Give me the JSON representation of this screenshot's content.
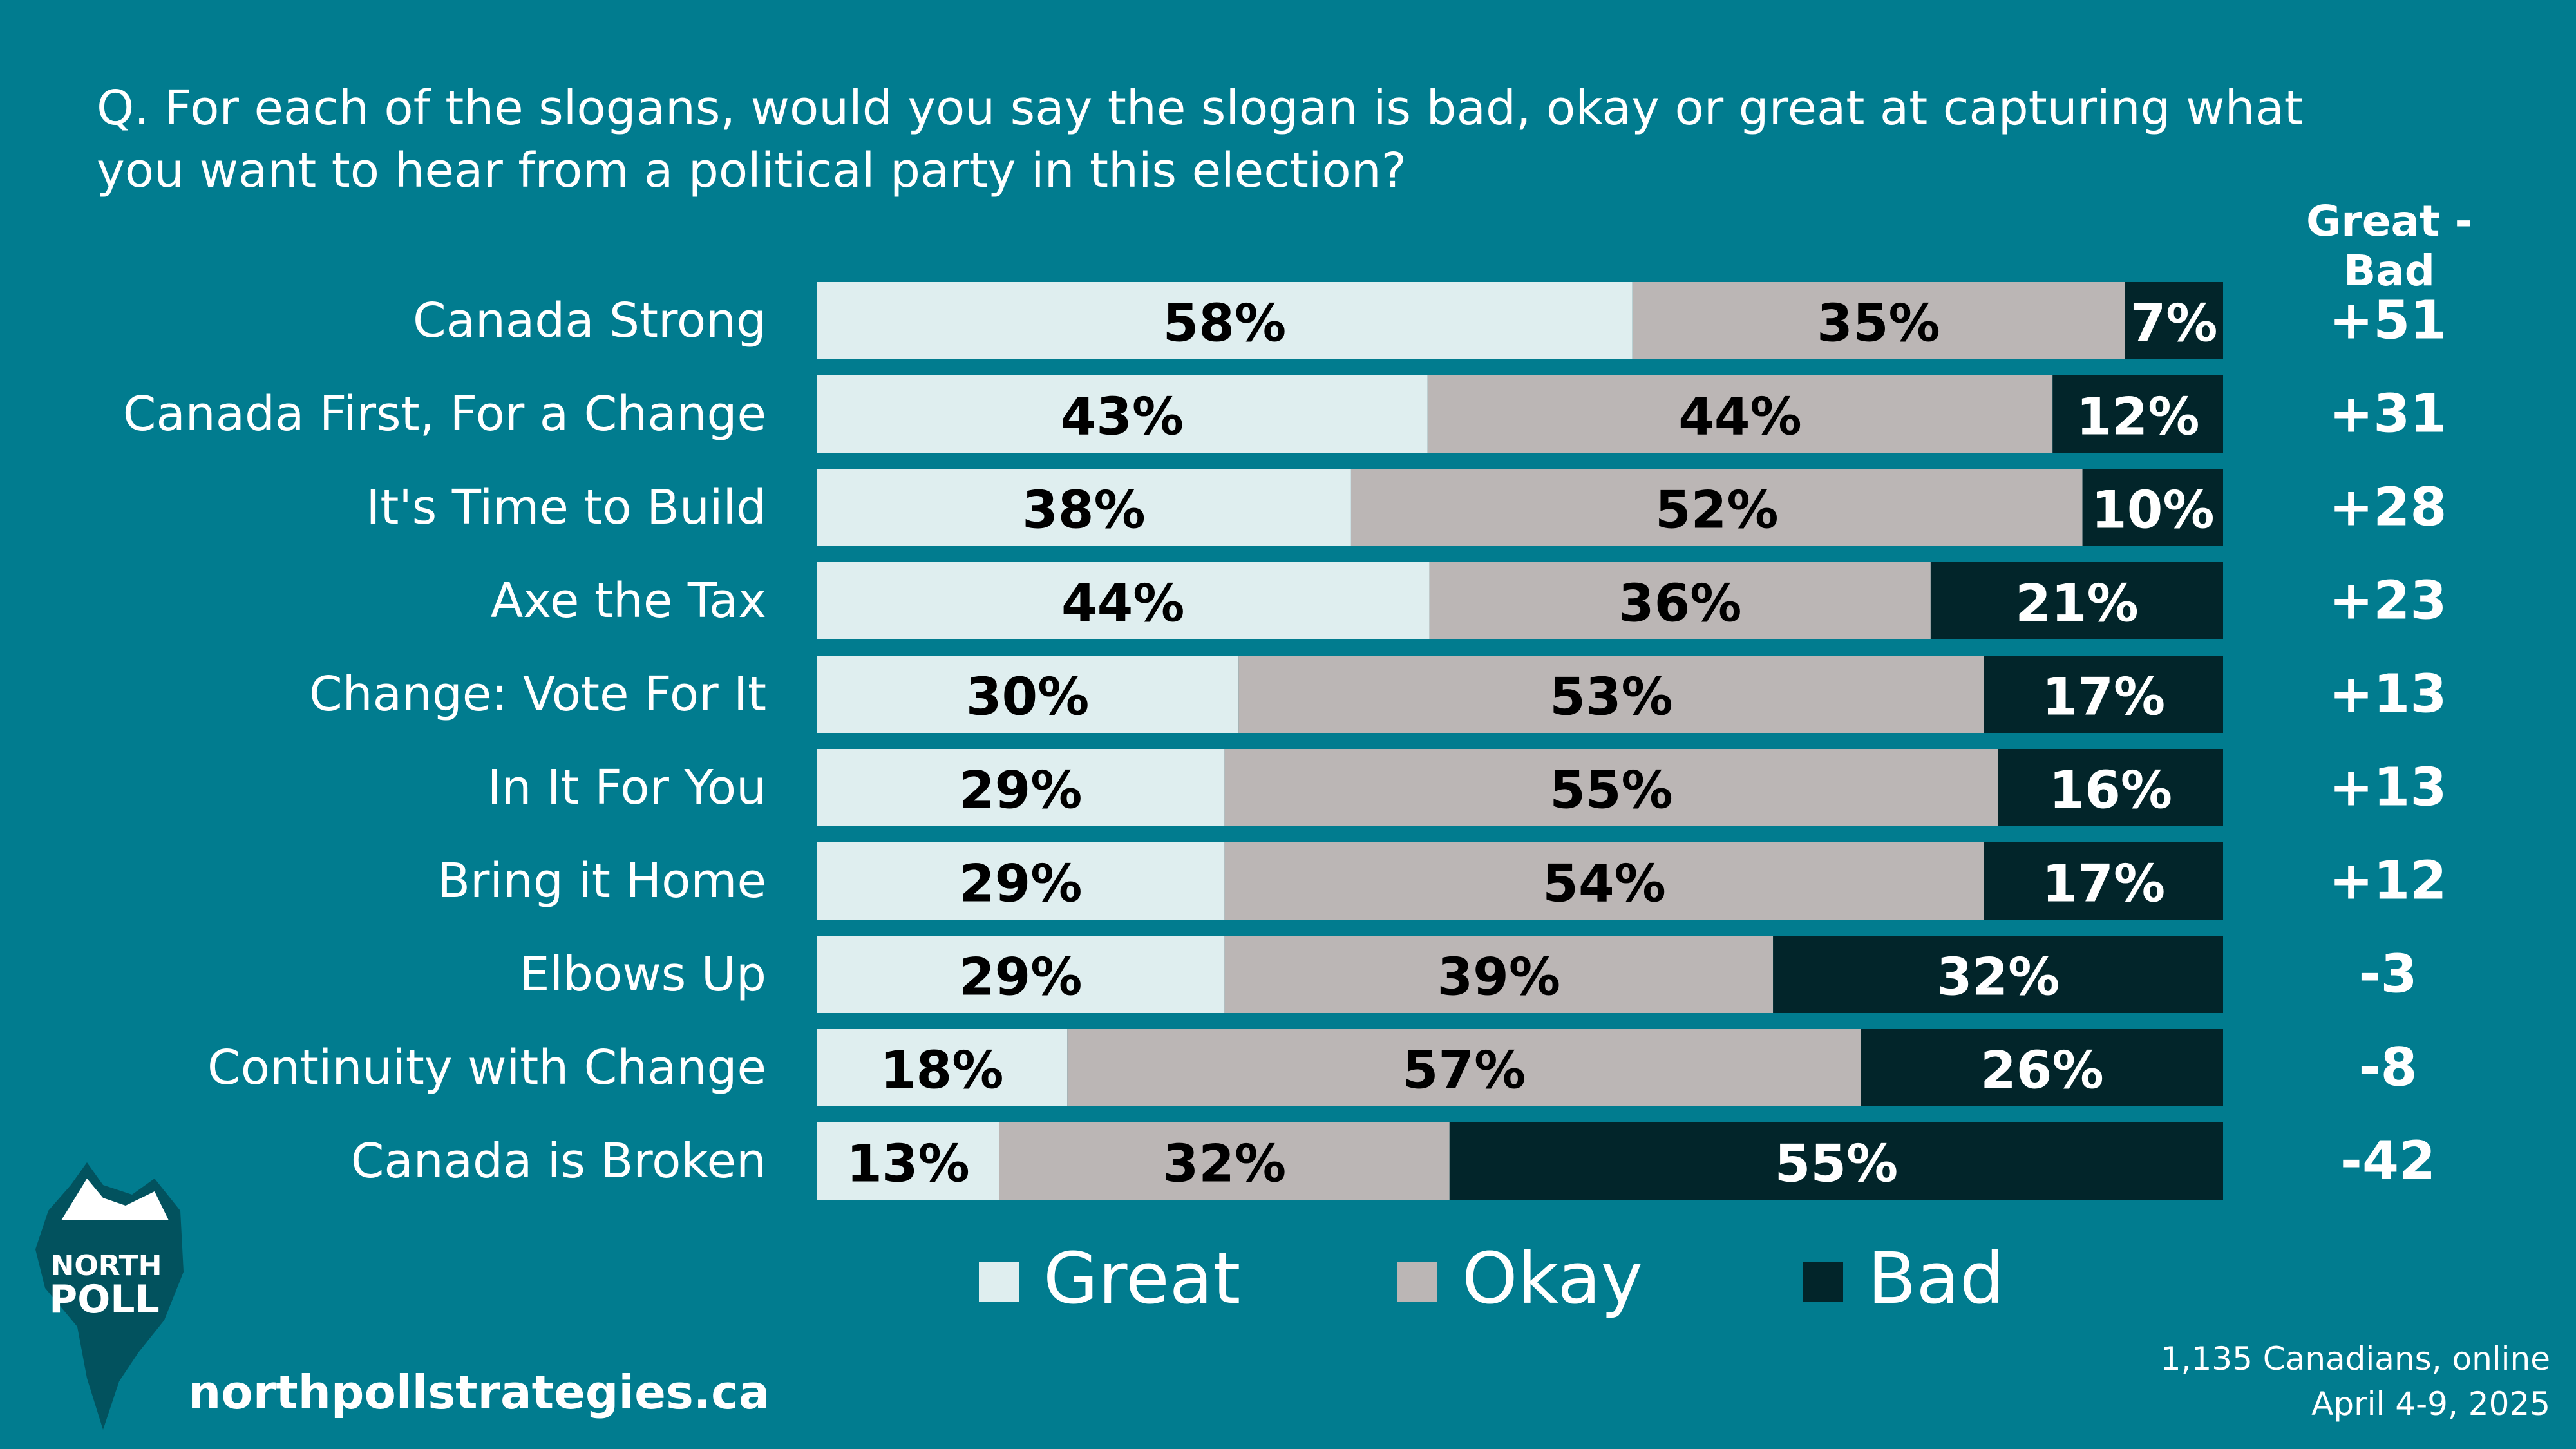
{
  "question": "Q. For each of the slogans, would you say the slogan is bad, okay or great at capturing what you want to hear from a political party in this election?",
  "diff_header": "Great - Bad",
  "colors": {
    "background": "#017c8f",
    "great": "#dfeeef",
    "okay": "#bbb6b5",
    "bad": "#02252a"
  },
  "chart_data": {
    "type": "bar",
    "orientation": "horizontal",
    "stacked": true,
    "categories": [
      "Canada Strong",
      "Canada First, For a Change",
      "It's Time to Build",
      "Axe the Tax",
      "Change: Vote For It",
      "In It For You",
      "Bring it Home",
      "Elbows Up",
      "Continuity with Change",
      "Canada is Broken"
    ],
    "series": [
      {
        "name": "Great",
        "values": [
          58,
          43,
          38,
          44,
          30,
          29,
          29,
          29,
          18,
          13
        ]
      },
      {
        "name": "Okay",
        "values": [
          35,
          44,
          52,
          36,
          53,
          55,
          54,
          39,
          57,
          32
        ]
      },
      {
        "name": "Bad",
        "values": [
          7,
          12,
          10,
          21,
          17,
          16,
          17,
          32,
          26,
          55
        ]
      }
    ],
    "value_labels": [
      [
        "58%",
        "35%",
        "7%"
      ],
      [
        "43%",
        "44%",
        "12%"
      ],
      [
        "38%",
        "52%",
        "10%"
      ],
      [
        "44%",
        "36%",
        "21%"
      ],
      [
        "30%",
        "53%",
        "17%"
      ],
      [
        "29%",
        "55%",
        "16%"
      ],
      [
        "29%",
        "54%",
        "17%"
      ],
      [
        "29%",
        "39%",
        "32%"
      ],
      [
        "18%",
        "57%",
        "26%"
      ],
      [
        "13%",
        "32%",
        "55%"
      ]
    ],
    "net_labels": [
      "+51",
      "+31",
      "+28",
      "+23",
      "+13",
      "+13",
      "+12",
      "-3",
      "-8",
      "-42"
    ],
    "legend_placement": "bottom",
    "grid": false
  },
  "legend": [
    {
      "label": "Great",
      "color": "#dfeeef"
    },
    {
      "label": "Okay",
      "color": "#bbb6b5"
    },
    {
      "label": "Bad",
      "color": "#02252a"
    }
  ],
  "logo": {
    "line1": "NORTH",
    "line2": "POLL"
  },
  "website": "northpollstrategies.ca",
  "source": {
    "line1": "1,135 Canadians, online",
    "line2": "April 4-9, 2025"
  }
}
